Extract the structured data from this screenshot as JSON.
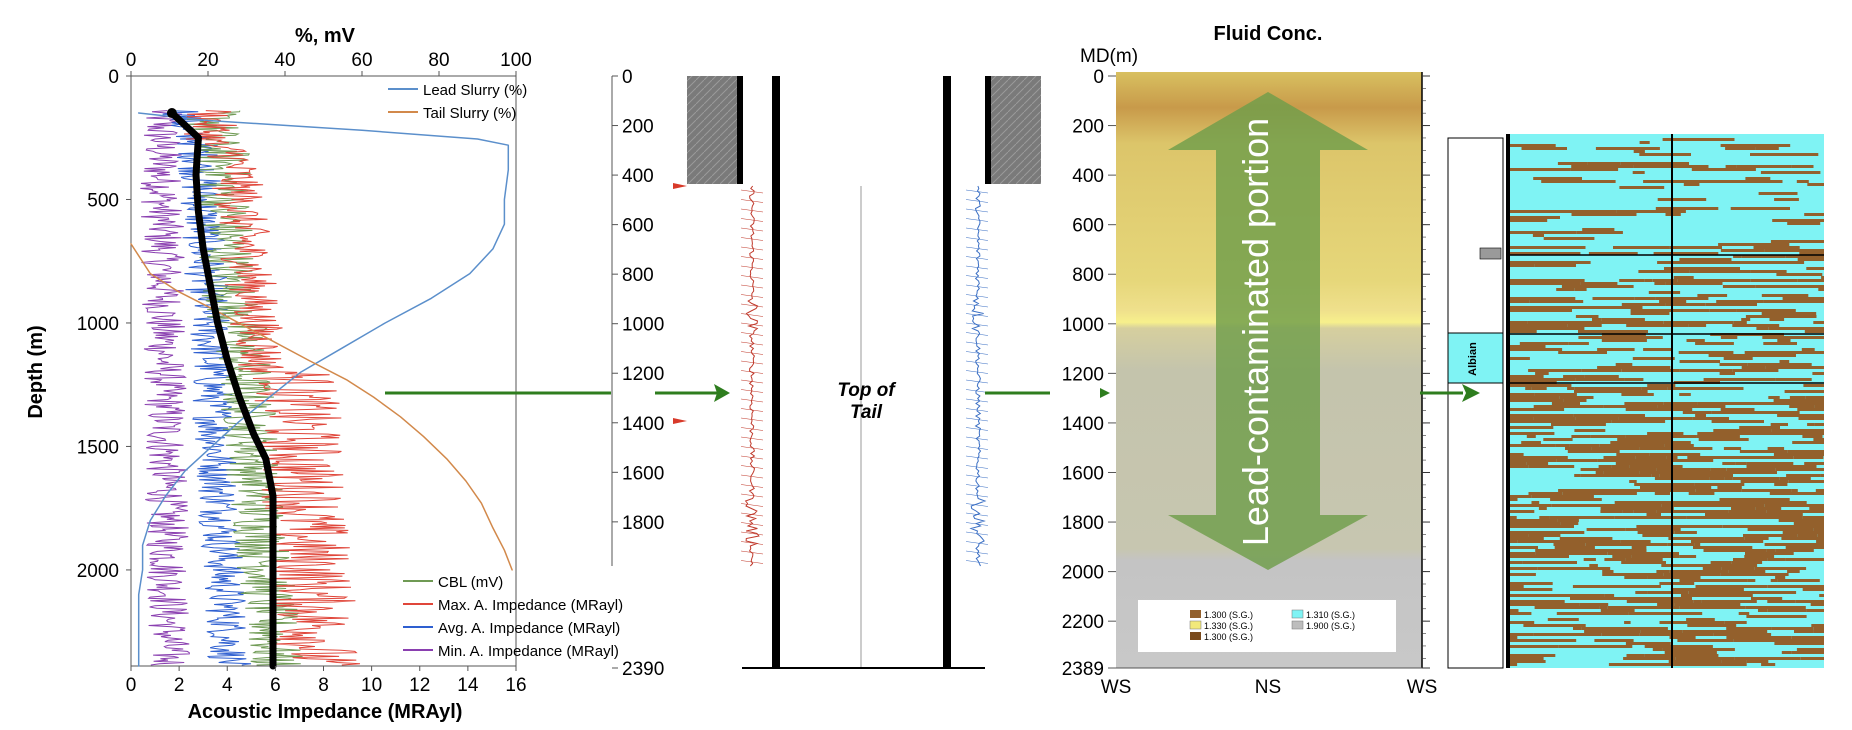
{
  "panels": {
    "left": {
      "top_axis_label": "%, mV",
      "bottom_axis_label": "Acoustic Impedance (MRAyl)",
      "y_axis_label": "Depth (m)",
      "top_ticks": [
        "0",
        "20",
        "40",
        "60",
        "80",
        "100"
      ],
      "bottom_ticks": [
        "0",
        "2",
        "4",
        "6",
        "8",
        "10",
        "12",
        "14",
        "16"
      ],
      "y_ticks": [
        "0",
        "500",
        "1000",
        "1500",
        "2000"
      ],
      "legend_top": [
        "Lead Slurry (%)",
        "Tail Slurry (%)"
      ],
      "legend_bottom": [
        "CBL (mV)",
        "Max. A. Impedance (MRayl)",
        "Avg. A. Impedance (MRayl)",
        "Min. A. Impedance (MRayl)"
      ]
    },
    "middle": {
      "depth_ticks": [
        "0",
        "200",
        "400",
        "600",
        "800",
        "1000",
        "1200",
        "1400",
        "1600",
        "1800",
        "2390"
      ],
      "annotation_line1": "Top of",
      "annotation_line2": "Tail"
    },
    "right": {
      "title": "Fluid Conc.",
      "md_label": "MD(m)",
      "depth_ticks": [
        "0",
        "200",
        "400",
        "600",
        "800",
        "1000",
        "1200",
        "1400",
        "1600",
        "1800",
        "2000",
        "2200",
        "2389"
      ],
      "bottom_ticks": [
        "WS",
        "NS",
        "WS"
      ],
      "arrow_text": "Lead-contaminated portion",
      "legend_items": [
        "1.300 (S.G.)",
        "1.310 (S.G.)",
        "1.330 (S.G.)",
        "1.900 (S.G.)",
        "1.300 (S.G.)"
      ],
      "formation_label": "Albian"
    }
  },
  "colors": {
    "lead": "#5b8fcb",
    "tail": "#d2894b",
    "cbl": "#6f9a54",
    "max": "#e0463a",
    "avg": "#2e5fd0",
    "min": "#8a3fb0",
    "arrow_green": "#2e7d1e",
    "cyan": "#7ff3f4",
    "brown": "#93602c"
  },
  "chart_data": [
    {
      "type": "line",
      "title": "",
      "xlabel_top": "%, mV",
      "xlabel_bottom": "Acoustic Impedance (MRAyl)",
      "ylabel": "Depth (m)",
      "xlim_top": [
        0,
        100
      ],
      "xlim_bottom": [
        0,
        16
      ],
      "ylim": [
        2389,
        0
      ],
      "series": [
        {
          "name": "Lead Slurry (%)",
          "axis": "top",
          "points": [
            [
              2,
              150
            ],
            [
              20,
              180
            ],
            [
              60,
              220
            ],
            [
              90,
              255
            ],
            [
              98,
              280
            ],
            [
              98,
              380
            ],
            [
              97,
              500
            ],
            [
              97,
              600
            ],
            [
              94,
              700
            ],
            [
              88,
              800
            ],
            [
              78,
              900
            ],
            [
              66,
              1000
            ],
            [
              55,
              1100
            ],
            [
              44,
              1200
            ],
            [
              36,
              1300
            ],
            [
              28,
              1400
            ],
            [
              21,
              1500
            ],
            [
              14,
              1600
            ],
            [
              9,
              1700
            ],
            [
              5,
              1800
            ],
            [
              3,
              1900
            ],
            [
              3,
              2000
            ],
            [
              2,
              2100
            ],
            [
              2,
              2389
            ]
          ]
        },
        {
          "name": "Tail Slurry (%)",
          "axis": "top",
          "points": [
            [
              0,
              680
            ],
            [
              5,
              800
            ],
            [
              12,
              870
            ],
            [
              22,
              950
            ],
            [
              34,
              1050
            ],
            [
              46,
              1150
            ],
            [
              56,
              1230
            ],
            [
              63,
              1300
            ],
            [
              70,
              1380
            ],
            [
              76,
              1460
            ],
            [
              82,
              1550
            ],
            [
              87,
              1640
            ],
            [
              91,
              1730
            ],
            [
              94,
              1830
            ],
            [
              97,
              1920
            ],
            [
              99,
              2000
            ]
          ]
        },
        {
          "name": "Avg. A. Impedance (MRayl)",
          "axis": "bottom",
          "points": [
            [
              1.7,
              150
            ],
            [
              2.8,
              250
            ],
            [
              2.7,
              400
            ],
            [
              2.8,
              550
            ],
            [
              3.0,
              700
            ],
            [
              3.3,
              850
            ],
            [
              3.6,
              1000
            ],
            [
              4.0,
              1150
            ],
            [
              4.5,
              1300
            ],
            [
              5.1,
              1450
            ],
            [
              5.6,
              1550
            ],
            [
              5.9,
              1700
            ],
            [
              5.9,
              2000
            ],
            [
              5.9,
              2389
            ]
          ]
        }
      ]
    },
    {
      "type": "heatmap",
      "title": "Fluid Conc.",
      "ylabel": "MD(m)",
      "ylim": [
        2389,
        0
      ],
      "x_categories": [
        "WS",
        "NS",
        "WS"
      ],
      "legend": [
        "1.300 (S.G.)",
        "1.310 (S.G.)",
        "1.330 (S.G.)",
        "1.900 (S.G.)",
        "1.300 (S.G.)"
      ]
    }
  ]
}
